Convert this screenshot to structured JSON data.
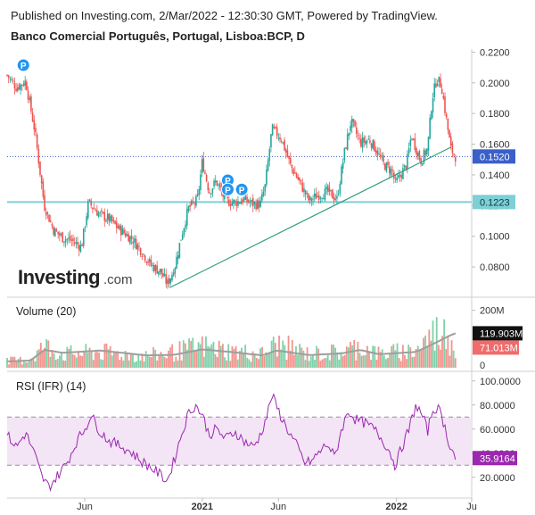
{
  "header": {
    "published": "Published on Investing.com, 2/Mar/2022 - 12:30:30 GMT, Powered by TradingView.",
    "symbol": "Banco Comercial Português, Portugal, Lisboa:BCP, D"
  },
  "logo": {
    "text": "Investing",
    "suffix": ".com"
  },
  "colors": {
    "up": "#26a69a",
    "down": "#ef5350",
    "volume_up": "#7fd1a8",
    "volume_down": "#f0958e",
    "trendline": "#2e9e7e",
    "support": "#7ecfd6",
    "current_line": "#3b5fc9",
    "rsi_line": "#9c27b0",
    "rsi_band": "#f3e5f5",
    "volume_ma": "#9e9e9e",
    "pivot_badge": "#2196f3",
    "grid": "#e9e9e9",
    "text": "#333333"
  },
  "chart_data": [
    {
      "type": "candlestick",
      "title": "Banco Comercial Português, Portugal, Lisboa:BCP, D",
      "ylim": [
        0.062,
        0.222
      ],
      "y_ticks": [
        "0.2200",
        "0.2000",
        "0.1800",
        "0.1600",
        "0.1400",
        "0.1200",
        "0.1000",
        "0.0800"
      ],
      "x_ticks": [
        "Jun",
        "2021",
        "Jun",
        "2022",
        "Ju"
      ],
      "grid": false,
      "close_path": [
        [
          0,
          0.205
        ],
        [
          0.02,
          0.197
        ],
        [
          0.04,
          0.201
        ],
        [
          0.06,
          0.168
        ],
        [
          0.08,
          0.12
        ],
        [
          0.1,
          0.104
        ],
        [
          0.12,
          0.099
        ],
        [
          0.14,
          0.097
        ],
        [
          0.16,
          0.093
        ],
        [
          0.175,
          0.122
        ],
        [
          0.2,
          0.114
        ],
        [
          0.22,
          0.111
        ],
        [
          0.24,
          0.105
        ],
        [
          0.27,
          0.098
        ],
        [
          0.29,
          0.09
        ],
        [
          0.31,
          0.081
        ],
        [
          0.33,
          0.077
        ],
        [
          0.345,
          0.069
        ],
        [
          0.36,
          0.079
        ],
        [
          0.375,
          0.1
        ],
        [
          0.39,
          0.118
        ],
        [
          0.41,
          0.124
        ],
        [
          0.42,
          0.149
        ],
        [
          0.435,
          0.129
        ],
        [
          0.45,
          0.136
        ],
        [
          0.47,
          0.123
        ],
        [
          0.49,
          0.122
        ],
        [
          0.51,
          0.124
        ],
        [
          0.53,
          0.121
        ],
        [
          0.545,
          0.121
        ],
        [
          0.555,
          0.132
        ],
        [
          0.57,
          0.17
        ],
        [
          0.59,
          0.164
        ],
        [
          0.61,
          0.146
        ],
        [
          0.63,
          0.135
        ],
        [
          0.65,
          0.123
        ],
        [
          0.67,
          0.127
        ],
        [
          0.69,
          0.129
        ],
        [
          0.71,
          0.124
        ],
        [
          0.725,
          0.153
        ],
        [
          0.74,
          0.175
        ],
        [
          0.76,
          0.161
        ],
        [
          0.78,
          0.163
        ],
        [
          0.795,
          0.156
        ],
        [
          0.81,
          0.147
        ],
        [
          0.83,
          0.142
        ],
        [
          0.835,
          0.134
        ],
        [
          0.845,
          0.139
        ],
        [
          0.86,
          0.147
        ],
        [
          0.87,
          0.166
        ],
        [
          0.89,
          0.149
        ],
        [
          0.905,
          0.157
        ],
        [
          0.915,
          0.19
        ],
        [
          0.925,
          0.203
        ],
        [
          0.935,
          0.198
        ],
        [
          0.945,
          0.177
        ],
        [
          0.955,
          0.157
        ],
        [
          0.965,
          0.152
        ]
      ],
      "last_price": {
        "value": 0.152,
        "label": "0.1520"
      },
      "support_level": {
        "value": 0.1223,
        "label": "0.1223"
      },
      "trendline": {
        "from": [
          0.35,
          0.0665
        ],
        "to": [
          1.0,
          0.158
        ]
      },
      "pivot_badges": [
        {
          "label": "P",
          "x": 0.035,
          "value": 0.2115
        },
        {
          "label": "P",
          "x": 0.475,
          "value": 0.1365
        },
        {
          "label": "P",
          "x": 0.475,
          "value": 0.1305
        },
        {
          "label": "P",
          "x": 0.505,
          "value": 0.1305
        }
      ]
    },
    {
      "type": "bar",
      "title": "Volume (20)",
      "ylim": [
        0,
        230
      ],
      "y_ticks": [
        {
          "value": 200,
          "label": "200M"
        }
      ],
      "ma_value": {
        "value": 119.903,
        "label": "119.903M"
      },
      "last_volume": {
        "value": 71.013,
        "label": "71.013M"
      },
      "profile": [
        [
          0,
          35
        ],
        [
          0.05,
          40
        ],
        [
          0.08,
          110
        ],
        [
          0.12,
          70
        ],
        [
          0.2,
          80
        ],
        [
          0.3,
          60
        ],
        [
          0.36,
          80
        ],
        [
          0.42,
          110
        ],
        [
          0.48,
          85
        ],
        [
          0.55,
          70
        ],
        [
          0.58,
          120
        ],
        [
          0.65,
          70
        ],
        [
          0.72,
          80
        ],
        [
          0.76,
          110
        ],
        [
          0.8,
          70
        ],
        [
          0.88,
          90
        ],
        [
          0.92,
          180
        ],
        [
          0.95,
          170
        ],
        [
          0.965,
          110
        ]
      ],
      "ma_profile": [
        [
          0,
          22
        ],
        [
          0.05,
          25
        ],
        [
          0.08,
          62
        ],
        [
          0.12,
          52
        ],
        [
          0.2,
          60
        ],
        [
          0.3,
          43
        ],
        [
          0.36,
          45
        ],
        [
          0.42,
          64
        ],
        [
          0.48,
          55
        ],
        [
          0.55,
          43
        ],
        [
          0.58,
          60
        ],
        [
          0.65,
          44
        ],
        [
          0.72,
          50
        ],
        [
          0.76,
          62
        ],
        [
          0.8,
          47
        ],
        [
          0.88,
          55
        ],
        [
          0.92,
          85
        ],
        [
          0.95,
          110
        ],
        [
          0.965,
          120
        ]
      ]
    },
    {
      "type": "line",
      "title": "RSI (IFR) (14)",
      "ylim": [
        5,
        105
      ],
      "y_ticks": [
        "100.0000",
        "80.0000",
        "60.0000",
        "40.0000",
        "20.0000"
      ],
      "bands": [
        30,
        70
      ],
      "last_value": {
        "value": 35.9164,
        "label": "35.9164"
      },
      "path": [
        [
          0,
          55
        ],
        [
          0.02,
          45
        ],
        [
          0.04,
          57
        ],
        [
          0.06,
          38
        ],
        [
          0.075,
          20
        ],
        [
          0.09,
          12
        ],
        [
          0.11,
          22
        ],
        [
          0.13,
          33
        ],
        [
          0.15,
          50
        ],
        [
          0.17,
          62
        ],
        [
          0.18,
          72
        ],
        [
          0.2,
          58
        ],
        [
          0.22,
          50
        ],
        [
          0.25,
          45
        ],
        [
          0.27,
          40
        ],
        [
          0.29,
          33
        ],
        [
          0.31,
          28
        ],
        [
          0.33,
          22
        ],
        [
          0.345,
          17
        ],
        [
          0.36,
          35
        ],
        [
          0.375,
          55
        ],
        [
          0.39,
          73
        ],
        [
          0.405,
          80
        ],
        [
          0.42,
          72
        ],
        [
          0.435,
          55
        ],
        [
          0.45,
          60
        ],
        [
          0.47,
          52
        ],
        [
          0.49,
          58
        ],
        [
          0.51,
          50
        ],
        [
          0.53,
          45
        ],
        [
          0.545,
          55
        ],
        [
          0.56,
          72
        ],
        [
          0.57,
          88
        ],
        [
          0.59,
          70
        ],
        [
          0.61,
          55
        ],
        [
          0.625,
          45
        ],
        [
          0.64,
          32
        ],
        [
          0.655,
          33
        ],
        [
          0.67,
          40
        ],
        [
          0.69,
          48
        ],
        [
          0.705,
          36
        ],
        [
          0.72,
          60
        ],
        [
          0.735,
          75
        ],
        [
          0.75,
          68
        ],
        [
          0.77,
          65
        ],
        [
          0.79,
          60
        ],
        [
          0.81,
          50
        ],
        [
          0.825,
          40
        ],
        [
          0.835,
          30
        ],
        [
          0.85,
          45
        ],
        [
          0.865,
          60
        ],
        [
          0.88,
          80
        ],
        [
          0.895,
          70
        ],
        [
          0.905,
          58
        ],
        [
          0.915,
          75
        ],
        [
          0.925,
          78
        ],
        [
          0.935,
          72
        ],
        [
          0.95,
          50
        ],
        [
          0.965,
          36
        ]
      ]
    }
  ]
}
